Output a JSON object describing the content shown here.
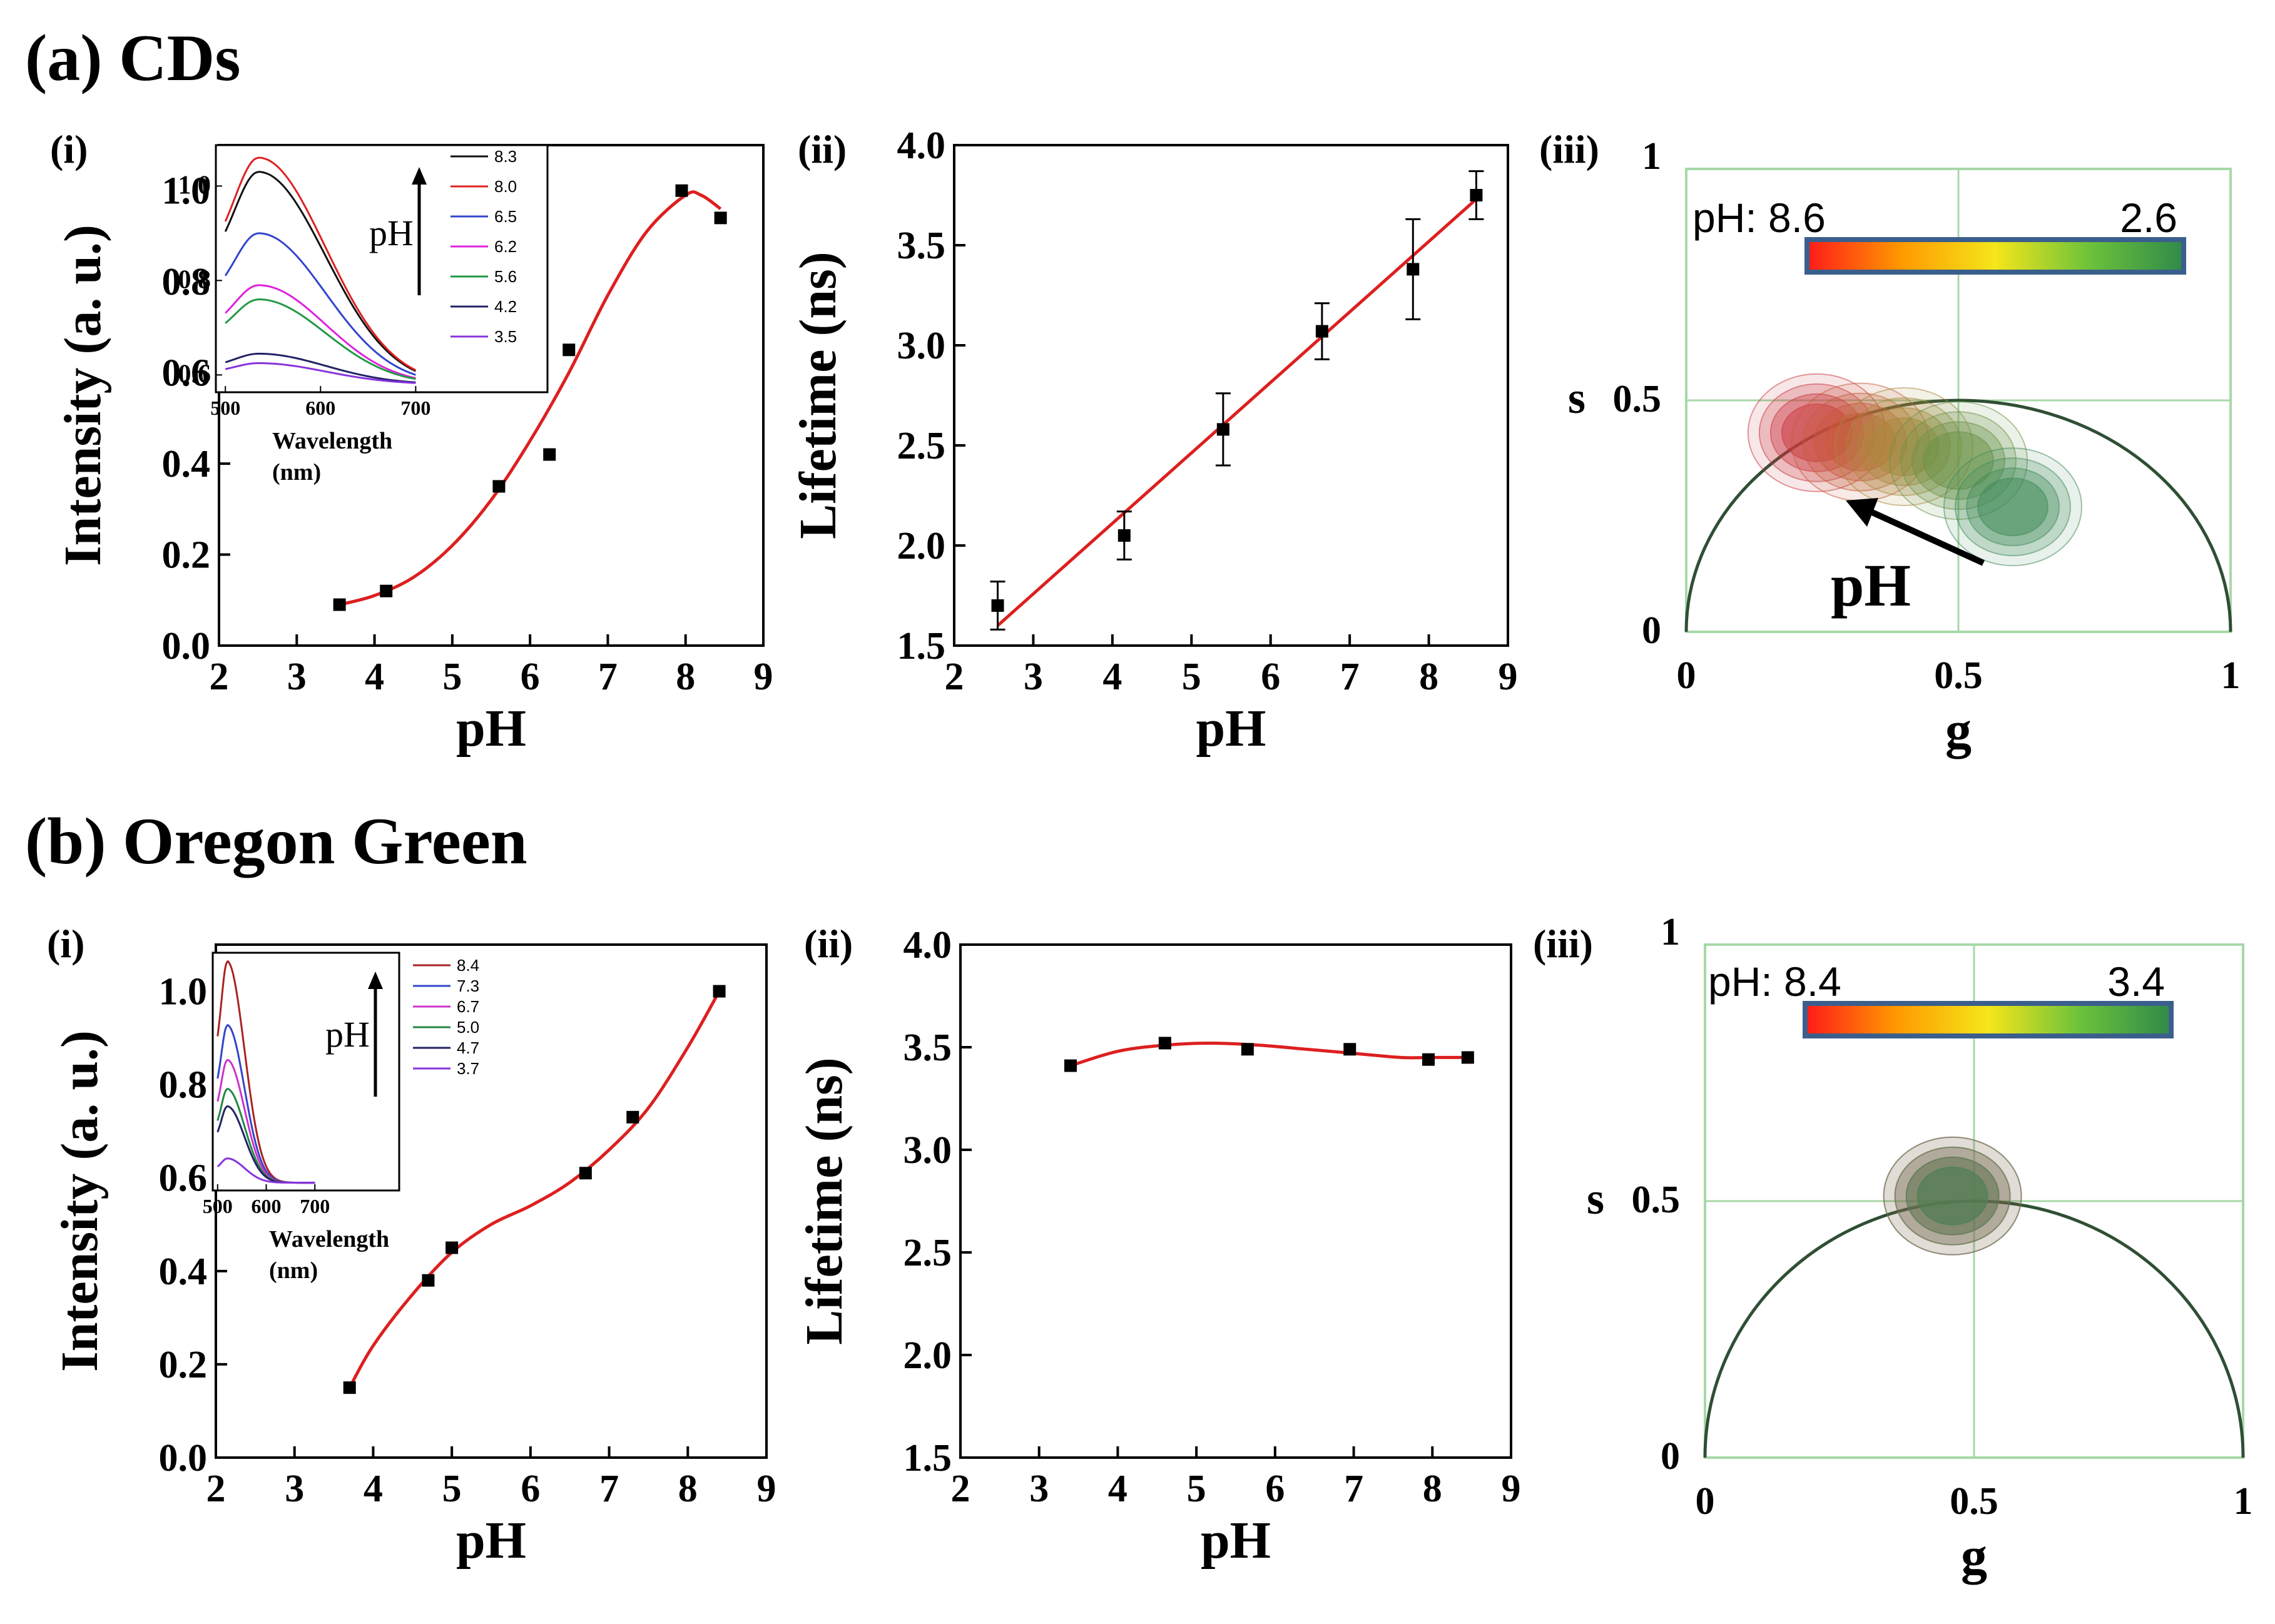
{
  "colors": {
    "frame": "#000000",
    "fit_line": "#dd1f1f",
    "marker": "#000000",
    "phasor_grid": "#a8d8a8",
    "phasor_arc": "#2f4f34",
    "colorbar": [
      "#ff1a1a",
      "#ff9900",
      "#f5e61a",
      "#6cc23a",
      "#2f8a4a"
    ],
    "colorbar_border": "#3b5f8c"
  },
  "sections": [
    {
      "label": "(a) CDs"
    },
    {
      "label": "(b) Oregon Green"
    }
  ],
  "chart_data": [
    {
      "id": "a-i",
      "type": "scatter",
      "panel_label": "(i)",
      "xlabel": "pH",
      "ylabel": "Intensity (a. u.)",
      "xlim": [
        2,
        9
      ],
      "ylim": [
        0.0,
        1.1
      ],
      "xticks": [
        "2",
        "3",
        "4",
        "5",
        "6",
        "7",
        "8",
        "9"
      ],
      "yticks": [
        "0.0",
        "0.2",
        "0.4",
        "0.6",
        "0.8",
        "1.0"
      ],
      "points": {
        "x": [
          3.55,
          4.15,
          5.6,
          6.25,
          6.5,
          7.95,
          8.45
        ],
        "y": [
          0.09,
          0.12,
          0.35,
          0.42,
          0.65,
          1.0,
          0.94
        ]
      },
      "fit": {
        "x": [
          3.55,
          4.0,
          4.5,
          5.0,
          5.5,
          6.0,
          6.5,
          7.0,
          7.5,
          8.0,
          8.2,
          8.45
        ],
        "y": [
          0.09,
          0.11,
          0.15,
          0.22,
          0.32,
          0.45,
          0.6,
          0.77,
          0.91,
          0.99,
          0.99,
          0.96
        ]
      },
      "inset": {
        "xlabel": "Wavelength (nm)",
        "xlim": [
          490,
          720
        ],
        "ylim": [
          0.57,
          1.08
        ],
        "xticks": [
          "500",
          "600",
          "700"
        ],
        "yticks": [
          "0.6",
          "0.8",
          "1.0"
        ],
        "arrow_label": "pH",
        "series": [
          {
            "name": "8.3",
            "color": "#111111",
            "peak": 1.03
          },
          {
            "name": "8.0",
            "color": "#dd2222",
            "peak": 1.06
          },
          {
            "name": "6.5",
            "color": "#3344cc",
            "peak": 0.9
          },
          {
            "name": "6.2",
            "color": "#dd22dd",
            "peak": 0.79
          },
          {
            "name": "5.6",
            "color": "#229944",
            "peak": 0.76
          },
          {
            "name": "4.2",
            "color": "#222266",
            "peak": 0.645
          },
          {
            "name": "3.5",
            "color": "#8833dd",
            "peak": 0.625
          }
        ]
      }
    },
    {
      "id": "a-ii",
      "type": "scatter",
      "panel_label": "(ii)",
      "xlabel": "pH",
      "ylabel": "Lifetime (ns)",
      "xlim": [
        2,
        9
      ],
      "ylim": [
        1.5,
        4.0
      ],
      "xticks": [
        "2",
        "3",
        "4",
        "5",
        "6",
        "7",
        "8",
        "9"
      ],
      "yticks": [
        "1.5",
        "2.0",
        "2.5",
        "3.0",
        "3.5",
        "4.0"
      ],
      "points": {
        "x": [
          2.55,
          4.15,
          5.4,
          6.65,
          7.8,
          8.6
        ],
        "y": [
          1.7,
          2.05,
          2.58,
          3.07,
          3.38,
          3.75
        ],
        "err": [
          0.12,
          0.12,
          0.18,
          0.14,
          0.25,
          0.12
        ]
      },
      "fit": {
        "x": [
          2.55,
          8.6
        ],
        "y": [
          1.6,
          3.73
        ]
      }
    },
    {
      "id": "a-iii",
      "type": "scatter",
      "panel_label": "(iii)",
      "xlabel": "g",
      "ylabel": "s",
      "xlim": [
        0,
        1
      ],
      "ylim": [
        0,
        1
      ],
      "xticks": [
        "0",
        "0.5",
        "1"
      ],
      "yticks": [
        "0",
        "0.5",
        "1"
      ],
      "colorbar_label": "pH: 8.6",
      "colorbar_end": "2.6",
      "arrow_label": "pH",
      "clusters": [
        {
          "g": 0.24,
          "s": 0.43,
          "color": "#c9363f"
        },
        {
          "g": 0.32,
          "s": 0.41,
          "color": "#c85a3a"
        },
        {
          "g": 0.4,
          "s": 0.4,
          "color": "#a88a3a"
        },
        {
          "g": 0.5,
          "s": 0.37,
          "color": "#6a9248"
        },
        {
          "g": 0.6,
          "s": 0.27,
          "color": "#3f8a58"
        }
      ]
    },
    {
      "id": "b-i",
      "type": "scatter",
      "panel_label": "(i)",
      "xlabel": "pH",
      "ylabel": "Intensity (a. u.)",
      "xlim": [
        2,
        9
      ],
      "ylim": [
        0.0,
        1.1
      ],
      "xticks": [
        "2",
        "3",
        "4",
        "5",
        "6",
        "7",
        "8",
        "9"
      ],
      "yticks": [
        "0.0",
        "0.2",
        "0.4",
        "0.6",
        "0.8",
        "1.0"
      ],
      "points": {
        "x": [
          3.7,
          4.7,
          5.0,
          6.7,
          7.3,
          8.4
        ],
        "y": [
          0.15,
          0.38,
          0.45,
          0.61,
          0.73,
          1.0
        ]
      },
      "fit": {
        "x": [
          3.7,
          4.0,
          4.5,
          5.0,
          5.5,
          6.0,
          6.5,
          7.0,
          7.5,
          8.0,
          8.4
        ],
        "y": [
          0.15,
          0.24,
          0.35,
          0.44,
          0.5,
          0.54,
          0.59,
          0.66,
          0.75,
          0.88,
          1.0
        ]
      },
      "inset": {
        "xlabel": "Wavelength (nm)",
        "xlim": [
          490,
          720
        ],
        "ylim": [
          0.65,
          1.05
        ],
        "xticks": [
          "500",
          "600",
          "700"
        ],
        "yticks": [],
        "arrow_label": "pH",
        "series": [
          {
            "name": "8.4",
            "color": "#aa2222",
            "peak": 1.04
          },
          {
            "name": "7.3",
            "color": "#3344cc",
            "peak": 0.93
          },
          {
            "name": "6.7",
            "color": "#cc33cc",
            "peak": 0.87
          },
          {
            "name": "5.0",
            "color": "#228844",
            "peak": 0.82
          },
          {
            "name": "4.7",
            "color": "#222266",
            "peak": 0.79
          },
          {
            "name": "3.7",
            "color": "#8833dd",
            "peak": 0.7
          }
        ]
      }
    },
    {
      "id": "b-ii",
      "type": "scatter",
      "panel_label": "(ii)",
      "xlabel": "pH",
      "ylabel": "Lifetime (ns)",
      "xlim": [
        2,
        9
      ],
      "ylim": [
        1.5,
        4.0
      ],
      "xticks": [
        "2",
        "3",
        "4",
        "5",
        "6",
        "7",
        "8",
        "9"
      ],
      "yticks": [
        "1.5",
        "2.0",
        "2.5",
        "3.0",
        "3.5",
        "4.0"
      ],
      "points": {
        "x": [
          3.4,
          4.6,
          5.65,
          6.95,
          7.95,
          8.45
        ],
        "y": [
          3.41,
          3.52,
          3.49,
          3.49,
          3.44,
          3.45
        ]
      },
      "fit": {
        "x": [
          3.4,
          4.0,
          4.6,
          5.2,
          5.8,
          6.4,
          7.0,
          7.6,
          8.0,
          8.45
        ],
        "y": [
          3.41,
          3.48,
          3.51,
          3.52,
          3.51,
          3.49,
          3.47,
          3.45,
          3.45,
          3.45
        ]
      }
    },
    {
      "id": "b-iii",
      "type": "scatter",
      "panel_label": "(iii)",
      "xlabel": "g",
      "ylabel": "s",
      "xlim": [
        0,
        1
      ],
      "ylim": [
        0,
        1
      ],
      "xticks": [
        "0",
        "0.5",
        "1"
      ],
      "yticks": [
        "0",
        "0.5",
        "1"
      ],
      "colorbar_label": "pH: 8.4",
      "colorbar_end": "3.4",
      "arrow_label": "",
      "clusters": [
        {
          "g": 0.46,
          "s": 0.51,
          "color": "#c9363f"
        },
        {
          "g": 0.46,
          "s": 0.51,
          "color": "#3f8a58"
        }
      ]
    }
  ]
}
